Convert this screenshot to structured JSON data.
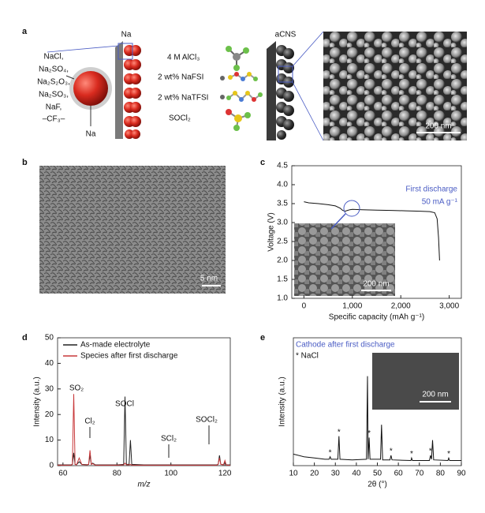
{
  "panel_a": {
    "label": "a",
    "anion_list": [
      "NaCl,",
      "Na₂SO₄,",
      "Na₂S₂O₃,",
      "Na₂SO₃,",
      "NaF,",
      "–CF₃–"
    ],
    "sphere_label": "Na",
    "anode_label": "Na",
    "electrolyte": [
      "4 M AlCl₃",
      "2 wt% NaFSI",
      "2 wt% NaTFSI",
      "SOCl₂"
    ],
    "cathode_label": "aCNS",
    "scale_bar": "200 nm"
  },
  "panel_b": {
    "label": "b",
    "scale_bar": "5 nm"
  },
  "chart_data": [
    {
      "type": "line",
      "panel_label": "c",
      "xlabel": "Specific capacity (mAh g⁻¹)",
      "ylabel": "Voltage (V)",
      "annotation": [
        "First discharge",
        "50 mA g⁻¹"
      ],
      "annotation_color": "#4a5cc4",
      "inset_scale_bar": "200 nm",
      "color": "#111111",
      "x": [
        0,
        100,
        300,
        500,
        650,
        750,
        800,
        850,
        900,
        950,
        1000,
        1200,
        1500,
        1800,
        2100,
        2400,
        2600,
        2700,
        2750,
        2780,
        2800
      ],
      "values": [
        3.55,
        3.52,
        3.5,
        3.47,
        3.44,
        3.38,
        3.32,
        3.3,
        3.32,
        3.34,
        3.35,
        3.34,
        3.33,
        3.32,
        3.31,
        3.3,
        3.29,
        3.26,
        3.1,
        2.6,
        2.0
      ],
      "xlim": [
        -250,
        3250
      ],
      "xticks": [
        0,
        {
          "value": 1000,
          "label": "1,000"
        },
        {
          "value": 2000,
          "label": "2,000"
        },
        {
          "value": 3000,
          "label": "3,000"
        }
      ],
      "ylim": [
        1.0,
        4.5
      ],
      "yticks": [
        {
          "value": 1.0,
          "label": "1.0"
        },
        {
          "value": 1.5,
          "label": "1.5"
        },
        {
          "value": 2.0,
          "label": "2.0"
        },
        {
          "value": 2.5,
          "label": "2.5"
        },
        {
          "value": 3.0,
          "label": "3.0"
        },
        {
          "value": 3.5,
          "label": "3.5"
        },
        {
          "value": 4.0,
          "label": "4.0"
        },
        4.5
      ]
    },
    {
      "type": "line",
      "panel_label": "d",
      "xlabel": "m/z",
      "ylabel": "Intensity (a.u.)",
      "annotations": [
        "SO₂",
        "Cl₂",
        "SOCl",
        "SCl₂",
        "SOCl₂"
      ],
      "x": [
        58,
        63,
        63.5,
        64,
        64.5,
        65,
        66,
        67,
        69,
        69.5,
        70,
        70.5,
        71,
        72,
        75,
        80,
        82.5,
        83,
        83.5,
        84.5,
        85,
        85.5,
        90,
        100,
        110,
        117,
        117.5,
        118,
        118.5,
        119.5,
        120,
        120.5,
        122
      ],
      "series": [
        {
          "name": "As-made electrolyte",
          "color": "#222222",
          "values": [
            0.3,
            0.3,
            0.5,
            5,
            0.5,
            0.4,
            1.5,
            0.5,
            0.4,
            0.5,
            4,
            0.5,
            1,
            0.3,
            0.3,
            0.3,
            0.5,
            27,
            0.5,
            0.5,
            10,
            0.5,
            0.3,
            0.3,
            0.3,
            0.3,
            0.5,
            4,
            0.5,
            0.4,
            1.5,
            0.3,
            0.3
          ]
        },
        {
          "name": "Species after first discharge",
          "color": "#c8383a",
          "values": [
            0.2,
            0.2,
            0.5,
            28,
            0.5,
            0.3,
            3,
            0.4,
            0.3,
            0.5,
            6,
            0.5,
            0.8,
            0.2,
            0.2,
            0.2,
            0.3,
            1,
            0.3,
            0.3,
            0.5,
            0.2,
            0.2,
            0.2,
            0.2,
            0.2,
            0.5,
            3,
            0.5,
            0.3,
            2,
            0.2,
            0.2
          ]
        }
      ],
      "xlim": [
        58,
        122
      ],
      "xticks": [
        60,
        80,
        100,
        120
      ],
      "ylim": [
        0,
        50
      ],
      "yticks": [
        0,
        10,
        20,
        30,
        40,
        50
      ]
    },
    {
      "type": "line",
      "panel_label": "e",
      "xlabel": "2θ (°)",
      "ylabel": "Intensity (a.u.)",
      "legend_title": "Cathode after first discharge",
      "legend_title_color": "#4a5cc4",
      "legend_note": "* NaCl",
      "marker_label": "*",
      "inset_scale_bar": "200 nm",
      "color": "#111111",
      "marker_x": [
        27.5,
        31.7,
        46.1,
        56.5,
        66.3,
        75.3,
        84
      ],
      "x": [
        10,
        15,
        20,
        25,
        27,
        27.5,
        28,
        31.2,
        31.7,
        32.2,
        38,
        44.8,
        45.3,
        45.6,
        46.1,
        46.5,
        51.5,
        52,
        52.5,
        56,
        56.5,
        57,
        66,
        66.3,
        66.7,
        74.8,
        75.3,
        75.8,
        76.3,
        76.8,
        83.6,
        84,
        84.4,
        90
      ],
      "values": [
        9,
        7,
        6,
        5,
        5,
        7,
        5,
        5,
        23,
        5,
        4.5,
        5,
        70,
        5,
        22,
        5,
        5,
        32,
        4.5,
        4.5,
        8,
        4.5,
        4,
        6,
        4,
        4,
        8,
        5,
        20,
        4.5,
        4,
        6,
        4,
        4
      ],
      "xlim": [
        10,
        90
      ],
      "xticks": [
        10,
        20,
        30,
        40,
        50,
        60,
        70,
        80,
        90
      ],
      "ylim": [
        0,
        100
      ],
      "yticks": []
    }
  ]
}
